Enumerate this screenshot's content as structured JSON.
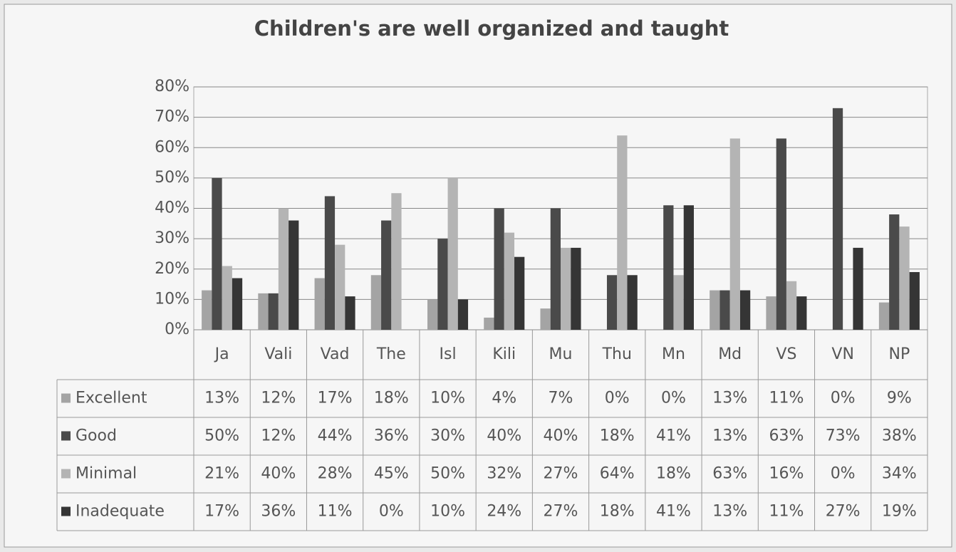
{
  "chart_data": {
    "type": "bar",
    "title": "Children's are well organized and taught",
    "categories": [
      "Ja",
      "Vali",
      "Vad",
      "The",
      "Isl",
      "Kili",
      "Mu",
      "Thu",
      "Mn",
      "Md",
      "VS",
      "VN",
      "NP"
    ],
    "series": [
      {
        "name": "Excellent",
        "color": "#a4a4a4",
        "values": [
          13,
          12,
          17,
          18,
          10,
          4,
          7,
          0,
          0,
          13,
          11,
          0,
          9
        ],
        "value_labels": [
          "13%",
          "12%",
          "17%",
          "18%",
          "10%",
          "4%",
          "7%",
          "0%",
          "0%",
          "13%",
          "11%",
          "0%",
          "9%"
        ]
      },
      {
        "name": "Good",
        "color": "#4a4a4a",
        "values": [
          50,
          12,
          44,
          36,
          30,
          40,
          40,
          18,
          41,
          13,
          63,
          73,
          38
        ],
        "value_labels": [
          "50%",
          "12%",
          "44%",
          "36%",
          "30%",
          "40%",
          "40%",
          "18%",
          "41%",
          "13%",
          "63%",
          "73%",
          "38%"
        ]
      },
      {
        "name": "Minimal",
        "color": "#b4b4b4",
        "values": [
          21,
          40,
          28,
          45,
          50,
          32,
          27,
          64,
          18,
          63,
          16,
          0,
          34
        ],
        "value_labels": [
          "21%",
          "40%",
          "28%",
          "45%",
          "50%",
          "32%",
          "27%",
          "64%",
          "18%",
          "63%",
          "16%",
          "0%",
          "34%"
        ]
      },
      {
        "name": "Inadequate",
        "color": "#353535",
        "values": [
          17,
          36,
          11,
          0,
          10,
          24,
          27,
          18,
          41,
          13,
          11,
          27,
          19
        ],
        "value_labels": [
          "17%",
          "36%",
          "11%",
          "0%",
          "10%",
          "24%",
          "27%",
          "18%",
          "41%",
          "13%",
          "11%",
          "27%",
          "19%"
        ]
      }
    ],
    "ylim": [
      0,
      80
    ],
    "yticks": [
      {
        "value": 0,
        "label": "0%"
      },
      {
        "value": 10,
        "label": "10%"
      },
      {
        "value": 20,
        "label": "20%"
      },
      {
        "value": 30,
        "label": "30%"
      },
      {
        "value": 40,
        "label": "40%"
      },
      {
        "value": 50,
        "label": "50%"
      },
      {
        "value": 60,
        "label": "60%"
      },
      {
        "value": 70,
        "label": "70%"
      },
      {
        "value": 80,
        "label": "80%"
      }
    ],
    "grid": true
  }
}
